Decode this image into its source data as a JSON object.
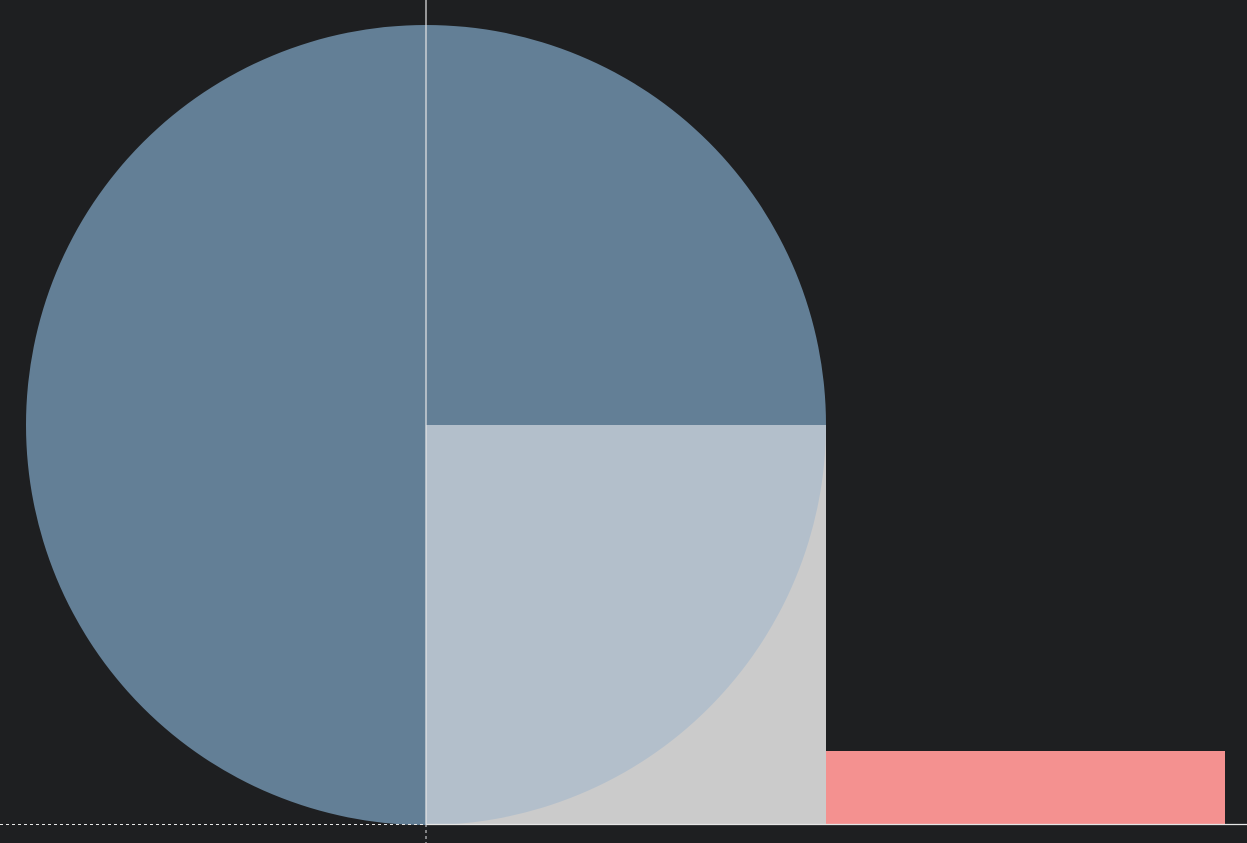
{
  "colors": {
    "background": "#1e1f21",
    "slice_dark": "#637f96",
    "slice_light": "#b3bfcb",
    "square": "#cbcbcb",
    "bar": "#f49190",
    "axis": "#e6e6e6"
  },
  "chart_data": {
    "type": "pie",
    "slices": [
      {
        "value": 75,
        "color": "#637f96"
      },
      {
        "value": 25,
        "color": "#b3bfcb"
      }
    ],
    "extra_marks": [
      {
        "kind": "square",
        "color": "#cbcbcb"
      },
      {
        "kind": "bar",
        "color": "#f49190"
      }
    ],
    "legend": "none",
    "grid": false
  }
}
